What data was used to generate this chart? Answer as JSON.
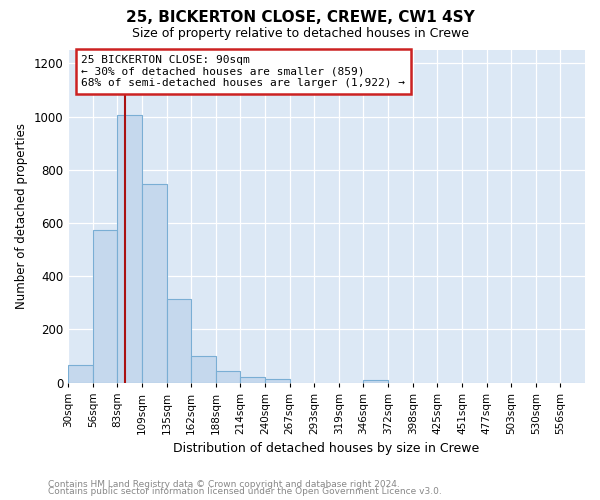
{
  "title": "25, BICKERTON CLOSE, CREWE, CW1 4SY",
  "subtitle": "Size of property relative to detached houses in Crewe",
  "xlabel": "Distribution of detached houses by size in Crewe",
  "ylabel": "Number of detached properties",
  "footer_line1": "Contains HM Land Registry data © Crown copyright and database right 2024.",
  "footer_line2": "Contains public sector information licensed under the Open Government Licence v3.0.",
  "bin_labels": [
    "30sqm",
    "56sqm",
    "83sqm",
    "109sqm",
    "135sqm",
    "162sqm",
    "188sqm",
    "214sqm",
    "240sqm",
    "267sqm",
    "293sqm",
    "319sqm",
    "346sqm",
    "372sqm",
    "398sqm",
    "425sqm",
    "451sqm",
    "477sqm",
    "503sqm",
    "530sqm",
    "556sqm"
  ],
  "bar_values": [
    65,
    575,
    1005,
    745,
    315,
    100,
    42,
    22,
    14,
    0,
    0,
    0,
    10,
    0,
    0,
    0,
    0,
    0,
    0,
    0,
    0
  ],
  "bar_color": "#c5d8ed",
  "bar_edge_color": "#7aaed4",
  "annotation_text_line1": "25 BICKERTON CLOSE: 90sqm",
  "annotation_text_line2": "← 30% of detached houses are smaller (859)",
  "annotation_text_line3": "68% of semi-detached houses are larger (1,922) →",
  "annotation_box_color": "#ffffff",
  "annotation_box_edge": "#cc2222",
  "red_line_color": "#aa1111",
  "ylim": [
    0,
    1250
  ],
  "yticks": [
    0,
    200,
    400,
    600,
    800,
    1000,
    1200
  ],
  "fig_background_color": "#ffffff",
  "plot_background": "#dce8f5",
  "grid_color": "#ffffff",
  "footer_color": "#888888"
}
